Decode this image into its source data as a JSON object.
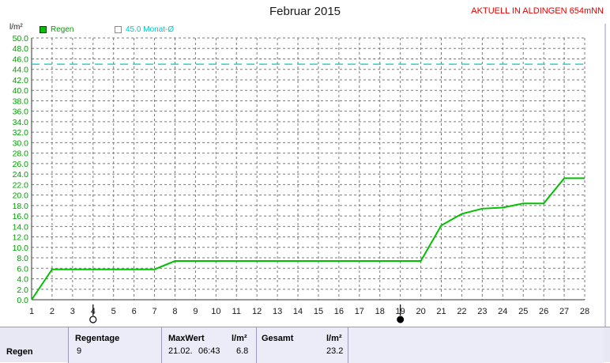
{
  "header": {
    "title": "Februar 2015",
    "station": "AKTUELL IN ALDINGEN 654mNN",
    "unit": "l/m²"
  },
  "legend": {
    "rain_label": "Regen",
    "month_label": "45.0 Monat-Ø"
  },
  "colors": {
    "rain": "#00c000",
    "month_avg": "#00c8c8",
    "grid": "#7a7a7a",
    "axis_text": "#00a000",
    "footer_bg": "#e8e8f4"
  },
  "chart_data": {
    "type": "line",
    "title": "Februar 2015",
    "ylabel": "l/m²",
    "xlabel": "",
    "xlim": [
      1,
      28
    ],
    "ylim": [
      0,
      50
    ],
    "y_ticks": [
      "0.0",
      "2.0",
      "4.0",
      "6.0",
      "8.0",
      "10.0",
      "12.0",
      "14.0",
      "16.0",
      "18.0",
      "20.0",
      "22.0",
      "24.0",
      "26.0",
      "28.0",
      "30.0",
      "32.0",
      "34.0",
      "36.0",
      "38.0",
      "40.0",
      "42.0",
      "44.0",
      "46.0",
      "48.0",
      "50.0"
    ],
    "x_ticks": [
      "1",
      "2",
      "3",
      "4",
      "5",
      "6",
      "7",
      "8",
      "9",
      "10",
      "11",
      "12",
      "13",
      "14",
      "15",
      "16",
      "17",
      "18",
      "19",
      "20",
      "21",
      "22",
      "23",
      "24",
      "25",
      "26",
      "27",
      "28"
    ],
    "grid": true,
    "legend_position": "top-left",
    "series": [
      {
        "name": "Regen",
        "x": [
          1,
          2,
          3,
          4,
          5,
          6,
          7,
          8,
          9,
          10,
          11,
          12,
          13,
          14,
          15,
          16,
          17,
          18,
          19,
          20,
          21,
          22,
          23,
          24,
          25,
          26,
          27,
          28
        ],
        "values": [
          0.0,
          5.8,
          5.8,
          5.8,
          5.8,
          5.8,
          5.8,
          7.4,
          7.4,
          7.4,
          7.4,
          7.4,
          7.4,
          7.4,
          7.4,
          7.4,
          7.4,
          7.4,
          7.4,
          7.4,
          14.2,
          16.4,
          17.4,
          17.6,
          18.4,
          18.4,
          23.2,
          23.2
        ]
      },
      {
        "name": "45.0 Monat-Ø",
        "x": [
          1,
          28
        ],
        "values": [
          45.0,
          45.0
        ],
        "style": "dashed"
      }
    ],
    "markers": [
      {
        "x": 4,
        "symbol": "open-circle"
      },
      {
        "x": 19,
        "symbol": "filled-circle"
      }
    ]
  },
  "footer": {
    "row_label": "Regen",
    "col1_header": "Regentage",
    "col1_value": "9",
    "col2_header": "MaxWert",
    "col2_unit": "l/m²",
    "col2_date": "21.02.",
    "col2_time": "06:43",
    "col2_value": "6.8",
    "col3_header": "Gesamt",
    "col3_unit": "l/m²",
    "col3_value": "23.2"
  }
}
